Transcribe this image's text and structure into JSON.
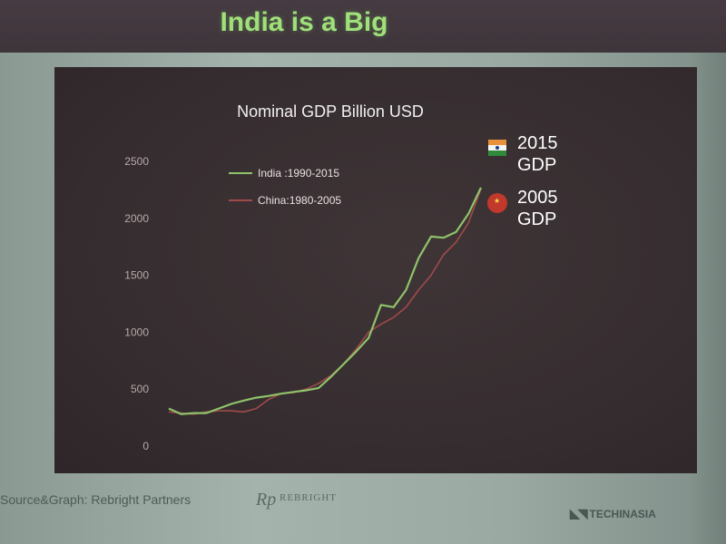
{
  "slide": {
    "title": "India is a Big",
    "source": "Source&Graph: Rebright Partners",
    "logo_mark": "Rp",
    "logo_name": "REBRIGHT",
    "footer_brand": "TECHINASIA"
  },
  "colors": {
    "india": "#8fc36a",
    "china": "#a04a4a",
    "title": "#9fe07a",
    "axis_text": "#b7a9a9"
  },
  "chart_data": {
    "type": "line",
    "title": "Nominal GDP Billion USD",
    "xlabel": "",
    "ylabel": "",
    "ylim": [
      0,
      2500
    ],
    "yticks": [
      0,
      500,
      1000,
      1500,
      2000,
      2500
    ],
    "x": [
      "1",
      "2",
      "3",
      "4",
      "5",
      "6",
      "7",
      "8",
      "9",
      "10",
      "11",
      "12",
      "13",
      "14",
      "15",
      "16",
      "17",
      "18",
      "19",
      "20",
      "21",
      "22",
      "23",
      "24",
      "25",
      "26"
    ],
    "series": [
      {
        "name": "India :1990-2015",
        "values": [
          330,
          280,
          290,
          290,
          330,
          370,
          400,
          425,
          440,
          460,
          475,
          490,
          510,
          610,
          720,
          830,
          950,
          1240,
          1220,
          1370,
          1650,
          1840,
          1830,
          1880,
          2040,
          2270
        ]
      },
      {
        "name": "China:1980-2005",
        "values": [
          300,
          290,
          280,
          300,
          310,
          310,
          300,
          330,
          410,
          460,
          470,
          500,
          550,
          620,
          720,
          850,
          1000,
          1070,
          1130,
          1220,
          1370,
          1500,
          1680,
          1790,
          1960,
          2260
        ]
      }
    ],
    "grid": false,
    "legend_position": "top-center",
    "annotations": [
      {
        "line1": "2015",
        "line2": "GDP",
        "flag": "india-flag-icon"
      },
      {
        "line1": "2005",
        "line2": "GDP",
        "flag": "china-flag-icon"
      }
    ]
  }
}
